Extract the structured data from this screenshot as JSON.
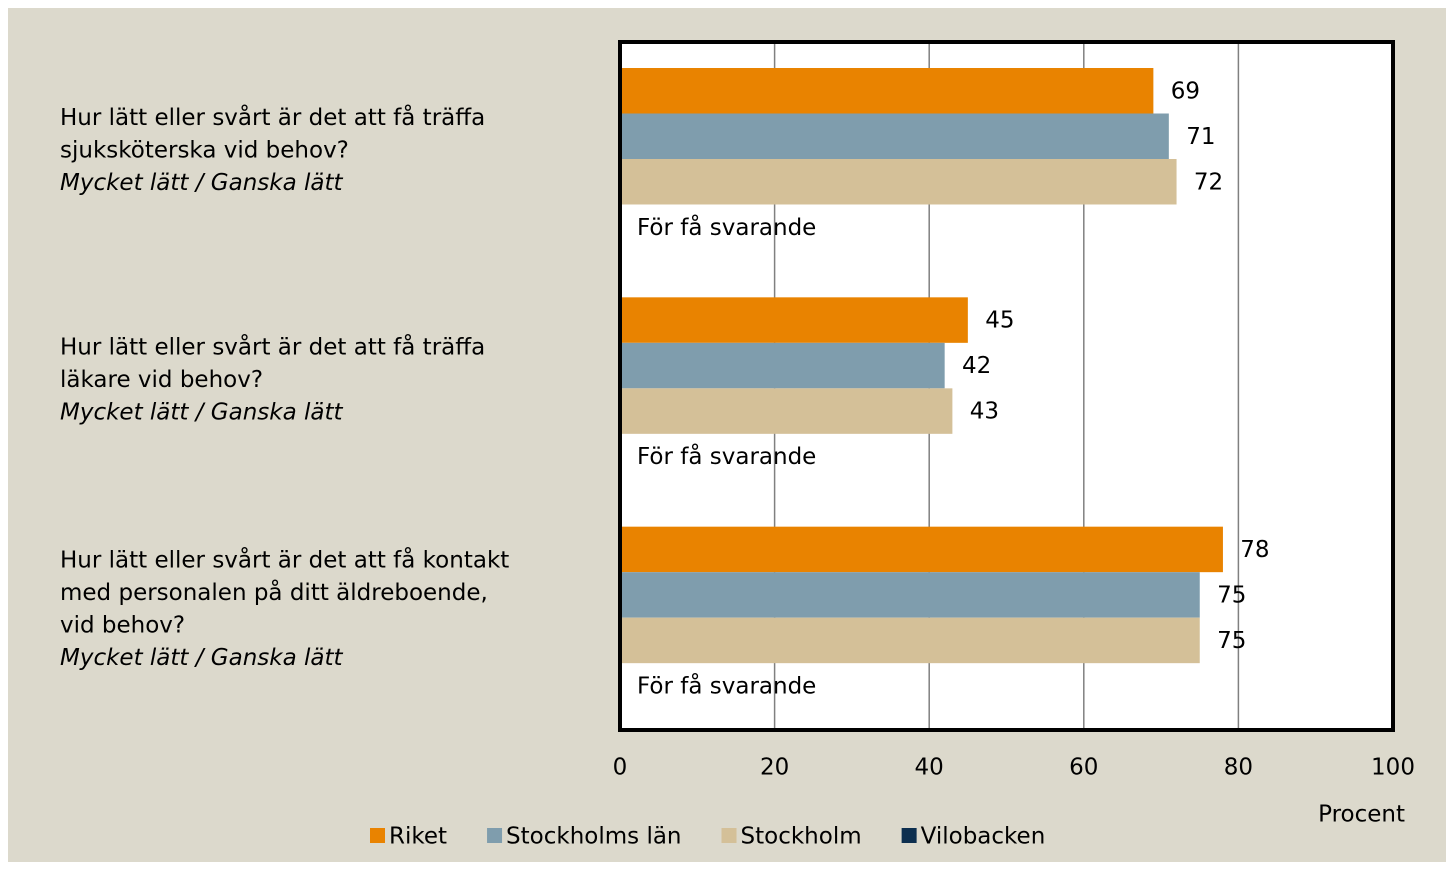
{
  "chart_data": {
    "type": "bar",
    "orientation": "horizontal",
    "categories": [
      [
        "Hur lätt eller svårt är det att få träffa",
        "sjuksköterska vid behov?"
      ],
      [
        "Hur lätt eller svårt är det att få träffa",
        "läkare vid behov?"
      ],
      [
        "Hur lätt eller svårt är det att få kontakt",
        "med personalen på ditt äldreboende,",
        "vid behov?"
      ]
    ],
    "category_notes": [
      "Mycket lätt / Ganska lätt",
      "Mycket lätt / Ganska lätt",
      "Mycket lätt / Ganska lätt"
    ],
    "series": [
      {
        "name": "Riket",
        "color": "#e98300",
        "values": [
          69,
          45,
          78
        ]
      },
      {
        "name": "Stockholms län",
        "color": "#7f9dad",
        "values": [
          71,
          42,
          75
        ]
      },
      {
        "name": "Stockholm",
        "color": "#d4c098",
        "values": [
          72,
          43,
          75
        ]
      },
      {
        "name": "Vilobacken",
        "color": "#0d2f4f",
        "values": [
          null,
          null,
          null
        ]
      }
    ],
    "annotations": [
      "För få svarande",
      "För få svarande",
      "För få svarande"
    ],
    "xlabel": "Procent",
    "xlim": [
      0,
      100
    ],
    "xticks": [
      0,
      20,
      40,
      60,
      80,
      100
    ],
    "grid": true,
    "legend": "bottom"
  }
}
